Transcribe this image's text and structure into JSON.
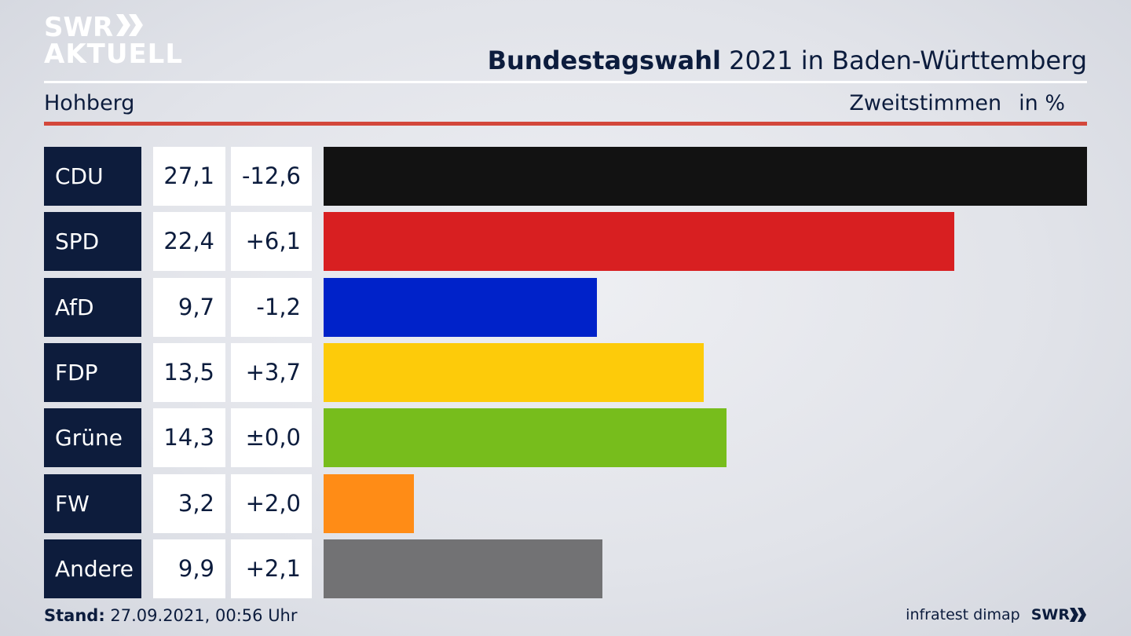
{
  "header": {
    "logo_line1": "SWR",
    "logo_line2": "AKTUELL",
    "title_bold": "Bundestagswahl",
    "title_rest": "2021 in Baden-Württemberg",
    "region": "Hohberg",
    "measure": "Zweitstimmen",
    "unit": "in %"
  },
  "footer": {
    "stand_label": "Stand:",
    "stand_value": "27.09.2021, 00:56 Uhr",
    "source": "infratest dimap",
    "brand": "SWR"
  },
  "colors": {
    "CDU": "#121212",
    "SPD": "#d81f21",
    "AfD": "#0022c9",
    "FDP": "#fdcb0a",
    "Grüne": "#77bd1c",
    "FW": "#ff8c16",
    "Andere": "#727274"
  },
  "chart_data": {
    "type": "bar",
    "orientation": "horizontal",
    "categories": [
      "CDU",
      "SPD",
      "AfD",
      "FDP",
      "Grüne",
      "FW",
      "Andere"
    ],
    "values": [
      27.1,
      22.4,
      9.7,
      13.5,
      14.3,
      3.2,
      9.9
    ],
    "value_labels": [
      "27,1",
      "22,4",
      "9,7",
      "13,5",
      "14,3",
      "3,2",
      "9,9"
    ],
    "changes": [
      -12.6,
      6.1,
      -1.2,
      3.7,
      0.0,
      2.0,
      2.1
    ],
    "change_labels": [
      "-12,6",
      "+6,1",
      "-1,2",
      "+3,7",
      "±0,0",
      "+2,0",
      "+2,1"
    ],
    "xlim": [
      0,
      27.1
    ],
    "grid": false,
    "legend": "none"
  }
}
